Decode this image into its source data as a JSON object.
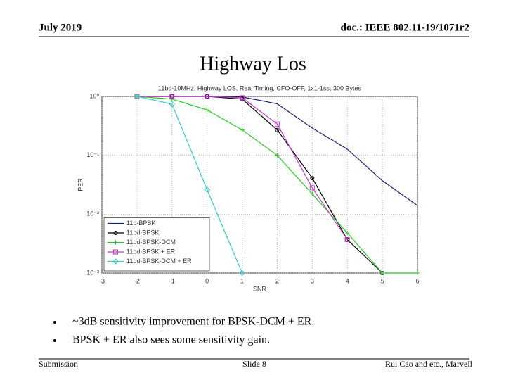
{
  "header": {
    "date": "July 2019",
    "doc": "doc.: IEEE 802.11-19/1071r2"
  },
  "title": "Highway Los",
  "chart_data": {
    "type": "line",
    "title": "11bd-10MHz, Highway LOS, Real Timing, CFO-OFF, 1x1-1ss, 300 Bytes",
    "x_label": "SNR",
    "y_label": "PER",
    "x": [
      -2,
      -1,
      0,
      1,
      2,
      3,
      4,
      5,
      6
    ],
    "series": [
      {
        "name": "11p-BPSK",
        "color": "#1a237e",
        "marker": "none",
        "values": [
          1,
          1,
          1,
          0.98,
          0.75,
          0.29,
          0.127,
          0.037,
          0.014
        ]
      },
      {
        "name": "11bd-BPSK",
        "color": "#000000",
        "marker": "circle",
        "values": [
          1,
          1,
          1,
          0.9,
          0.27,
          0.041,
          0.0037,
          0.001,
          null
        ]
      },
      {
        "name": "11bd-BPSK-DCM",
        "color": "#22cc22",
        "marker": "plus",
        "values": [
          1,
          0.9,
          0.59,
          0.27,
          0.1,
          0.022,
          0.0048,
          0.001,
          0.001
        ]
      },
      {
        "name": "11bd-BPSK + ER",
        "color": "#cc33cc",
        "marker": "square",
        "values": [
          1,
          1,
          1,
          0.95,
          0.34,
          0.028,
          0.0037,
          null,
          null
        ]
      },
      {
        "name": "11bd-BPSK-DCM + ER",
        "color": "#33cccc",
        "marker": "diamond",
        "values": [
          1,
          0.74,
          0.026,
          0.001,
          null,
          null,
          null,
          null,
          null
        ]
      }
    ],
    "xlim": [
      -3,
      6
    ],
    "xticks": [
      -3,
      -2,
      -1,
      0,
      1,
      2,
      3,
      4,
      5,
      6
    ],
    "ylim": [
      0.001,
      1
    ],
    "log_y": true,
    "yticks": [
      {
        "value": 1,
        "label": "10⁰"
      },
      {
        "value": 0.1,
        "label": "10⁻¹"
      },
      {
        "value": 0.01,
        "label": "10⁻²"
      },
      {
        "value": 0.001,
        "label": "10⁻³"
      }
    ],
    "grid": true,
    "legend": "lower left"
  },
  "bullets": [
    "~3dB sensitivity improvement for BPSK-DCM + ER.",
    "BPSK + ER also sees some sensitivity gain."
  ],
  "footer": {
    "left": "Submission",
    "center": "Slide 8",
    "right": "Rui Cao and etc., Marvell"
  }
}
